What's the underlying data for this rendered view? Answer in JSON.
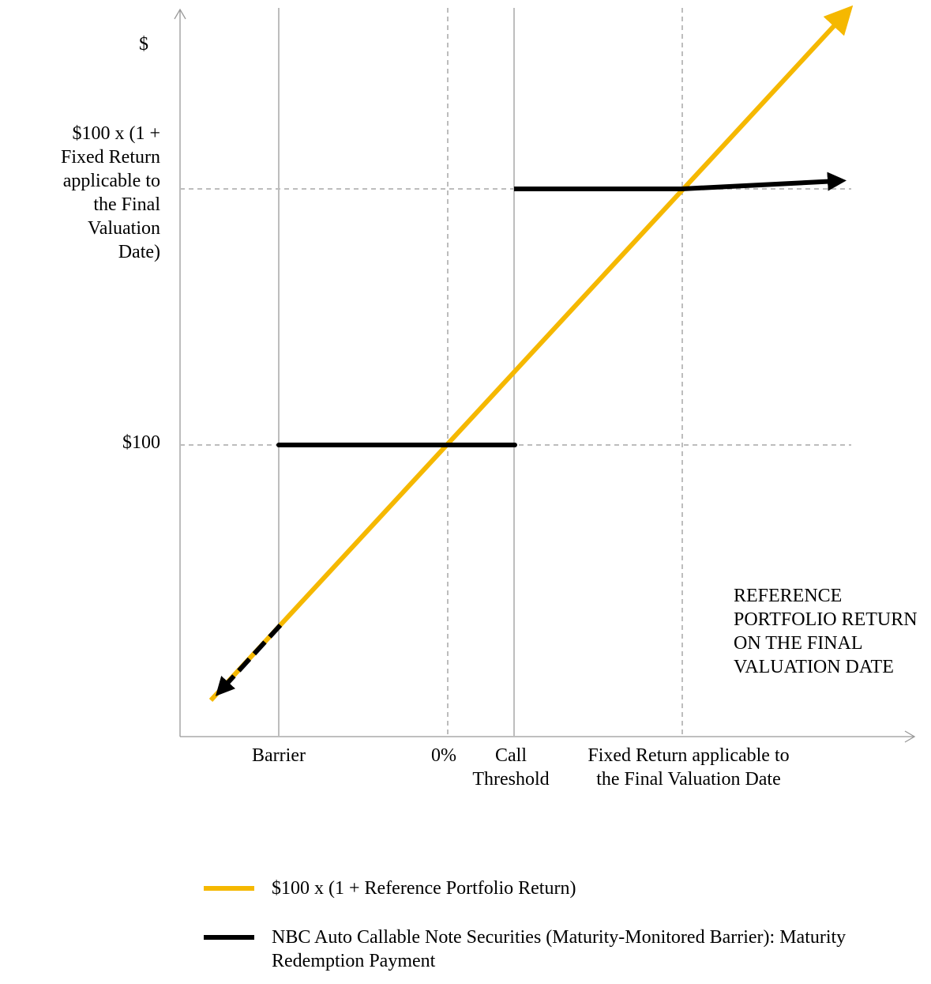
{
  "chart_data": {
    "type": "line",
    "ylabel": "$",
    "xlabel": "REFERENCE PORTFOLIO RETURN ON THE FINAL VALUATION DATE",
    "x_ticks": [
      {
        "key": "barrier",
        "label": "Barrier"
      },
      {
        "key": "zero",
        "label": "0%"
      },
      {
        "key": "call",
        "label": "Call Threshold"
      },
      {
        "key": "fixed",
        "label": "Fixed Return applicable to the Final Valuation Date"
      }
    ],
    "y_ticks": [
      {
        "key": "hundred",
        "label": "$100"
      },
      {
        "key": "fixed",
        "label": "$100 x (1 + Fixed Return applicable to the Final Valuation Date)"
      }
    ],
    "series": [
      {
        "name": "$100 x (1 + Reference Portfolio Return)",
        "color": "#f5b800",
        "style": "solid",
        "points": [
          [
            "below-barrier",
            "below-barrier"
          ],
          [
            "beyond-fixed",
            "beyond-fixed"
          ]
        ]
      },
      {
        "name": "NBC Auto Callable Note Securities (Maturity-Monitored Barrier): Maturity Redemption Payment",
        "color": "#000000",
        "segments": [
          {
            "from": [
              "barrier",
              "hundred"
            ],
            "to": [
              "call",
              "hundred"
            ],
            "style": "solid"
          },
          {
            "from": [
              "call",
              "fixed"
            ],
            "to": [
              "fixed",
              "fixed"
            ],
            "style": "solid"
          },
          {
            "from": [
              "fixed",
              "fixed"
            ],
            "to": [
              "beyond-fixed",
              "slightly-above-fixed"
            ],
            "style": "solid-arrow"
          },
          {
            "from": [
              "barrier",
              "at-barrier"
            ],
            "to": [
              "below-barrier",
              "below-barrier"
            ],
            "style": "dashed-arrow"
          }
        ]
      }
    ],
    "grid": "dashed reference lines at y-ticks and at 0% and Fixed Return; solid lines at Barrier and Call Threshold",
    "legend_position": "bottom"
  },
  "legend": {
    "items": [
      {
        "label": "$100 x (1 + Reference Portfolio Return)",
        "color": "#f5b800"
      },
      {
        "label": "NBC Auto Callable Note Securities (Maturity-Monitored Barrier): Maturity Redemption Payment",
        "color": "#000000"
      }
    ]
  }
}
